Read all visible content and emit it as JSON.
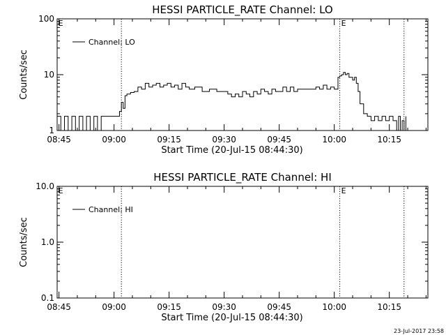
{
  "footer_timestamp": "23-Jul-2017 23:58",
  "chart_data": [
    {
      "type": "line",
      "title": "HESSI PARTICLE_RATE Channel: LO",
      "xlabel": "Start Time (20-Jul-15 08:44:30)",
      "ylabel": "Counts/sec",
      "yscale": "log",
      "ylim": [
        1,
        100
      ],
      "yticks": [
        "1",
        "10",
        "100"
      ],
      "xlim": [
        "08:44:30",
        "10:25:30"
      ],
      "xticks": [
        "08:45",
        "09:00",
        "09:15",
        "09:30",
        "09:45",
        "10:00",
        "10:15"
      ],
      "legend": {
        "label": "Channel: LO",
        "placement": "top-left"
      },
      "markers": [
        {
          "time": "09:02:00",
          "label": ""
        },
        {
          "time": "10:01:30",
          "label": "E"
        },
        {
          "time": "10:19:00",
          "label": ""
        }
      ],
      "flags": [
        {
          "time": "08:45:00",
          "label": "E"
        }
      ],
      "series": [
        {
          "name": "Channel: LO",
          "x": [
            "08:44:30",
            "08:45:30",
            "08:46:30",
            "08:47:30",
            "08:48:30",
            "08:49:30",
            "08:50:30",
            "08:51:30",
            "08:52:30",
            "08:53:30",
            "08:54:30",
            "08:55:30",
            "08:56:30",
            "08:57:30",
            "08:58:30",
            "08:59:30",
            "09:00:30",
            "09:01:00",
            "09:01:30",
            "09:02:00",
            "09:02:30",
            "09:03:00",
            "09:03:30",
            "09:04:30",
            "09:05:30",
            "09:06:30",
            "09:07:30",
            "09:08:30",
            "09:09:30",
            "09:10:30",
            "09:11:30",
            "09:12:30",
            "09:13:30",
            "09:14:30",
            "09:15:30",
            "09:16:30",
            "09:17:30",
            "09:18:30",
            "09:19:30",
            "09:20:30",
            "09:22:00",
            "09:24:00",
            "09:26:00",
            "09:28:00",
            "09:30:00",
            "09:31:00",
            "09:32:00",
            "09:33:00",
            "09:34:00",
            "09:35:00",
            "09:36:00",
            "09:37:00",
            "09:38:00",
            "09:39:00",
            "09:40:00",
            "09:41:00",
            "09:42:00",
            "09:43:00",
            "09:44:00",
            "09:45:00",
            "09:46:00",
            "09:47:00",
            "09:48:00",
            "09:49:00",
            "09:50:00",
            "09:52:00",
            "09:54:00",
            "09:55:00",
            "09:56:00",
            "09:57:00",
            "09:58:00",
            "09:59:00",
            "10:00:00",
            "10:00:30",
            "10:01:00",
            "10:01:30",
            "10:02:00",
            "10:02:30",
            "10:03:00",
            "10:03:30",
            "10:04:00",
            "10:05:00",
            "10:05:30",
            "10:06:00",
            "10:06:30",
            "10:07:00",
            "10:08:00",
            "10:09:00",
            "10:10:00",
            "10:11:00",
            "10:12:00",
            "10:13:00",
            "10:14:00",
            "10:15:00",
            "10:16:00",
            "10:17:00",
            "10:17:30",
            "10:18:00",
            "10:18:30",
            "10:19:00",
            "10:19:30"
          ],
          "values": [
            1.8,
            1,
            1.8,
            1,
            1.8,
            1,
            1.8,
            1,
            1.8,
            1,
            1.8,
            1,
            1.8,
            1.8,
            1.8,
            1.8,
            1.8,
            1.8,
            2.2,
            3.2,
            2.5,
            4.2,
            4.5,
            4.8,
            5,
            6,
            5.5,
            7,
            6,
            6.5,
            7,
            6,
            6.5,
            7,
            6,
            6.5,
            5.5,
            7,
            6,
            5.5,
            6,
            5,
            5.5,
            5,
            5,
            4.5,
            4,
            4.5,
            4,
            5,
            4.5,
            4,
            5,
            4.5,
            5.5,
            5,
            4.5,
            5.5,
            5,
            5,
            6,
            5,
            6,
            5,
            5.5,
            5.5,
            5.5,
            6,
            5.5,
            6.5,
            5.5,
            6,
            5.5,
            5.5,
            9,
            9.5,
            10,
            11,
            10,
            10.5,
            9,
            8,
            9,
            7,
            5,
            3,
            2,
            1.8,
            1.5,
            1.8,
            1.5,
            1.8,
            1.5,
            1.8,
            1.5,
            1,
            1.8,
            1,
            1.5,
            1,
            1.8
          ]
        }
      ]
    },
    {
      "type": "line",
      "title": "HESSI PARTICLE_RATE Channel: HI",
      "xlabel": "Start Time (20-Jul-15 08:44:30)",
      "ylabel": "Counts/sec",
      "yscale": "log",
      "ylim": [
        0.1,
        10
      ],
      "yticks": [
        "0.1",
        "1.0",
        "10.0"
      ],
      "xlim": [
        "08:44:30",
        "10:25:30"
      ],
      "xticks": [
        "08:45",
        "09:00",
        "09:15",
        "09:30",
        "09:45",
        "10:00",
        "10:15"
      ],
      "legend": {
        "label": "Channel: HI",
        "placement": "top-left"
      },
      "markers": [
        {
          "time": "09:02:00",
          "label": ""
        },
        {
          "time": "10:01:30",
          "label": "E"
        },
        {
          "time": "10:19:00",
          "label": ""
        }
      ],
      "flags": [
        {
          "time": "08:45:00",
          "label": "E"
        }
      ],
      "series": [
        {
          "name": "Channel: HI",
          "x": [],
          "values": []
        }
      ]
    }
  ]
}
